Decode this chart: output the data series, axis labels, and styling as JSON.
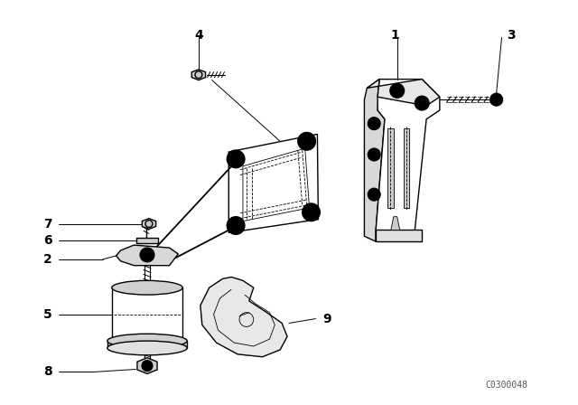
{
  "background_color": "#ffffff",
  "line_color": "#000000",
  "lw": 1.0,
  "tlw": 0.6,
  "figure_width": 6.4,
  "figure_height": 4.48,
  "dpi": 100,
  "watermark": "C0300048",
  "label_fontsize": 10
}
